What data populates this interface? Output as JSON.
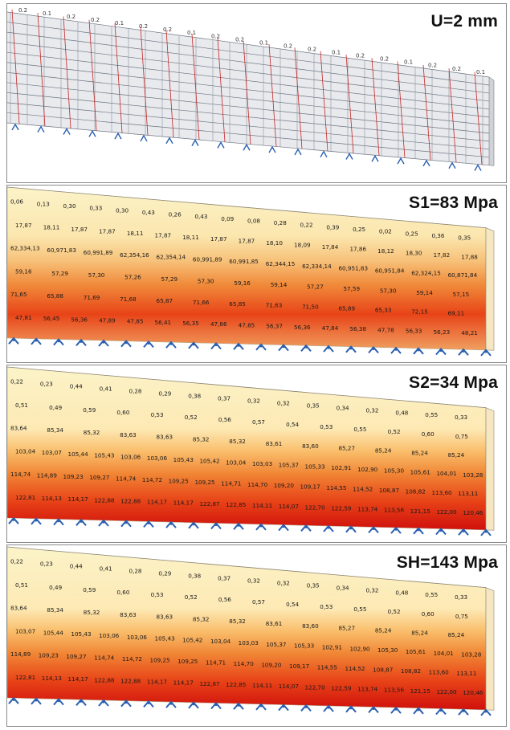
{
  "panels": [
    {
      "id": "p1",
      "label": "U=2 mm",
      "kind": "mesh",
      "sample_labels": [
        "0.2",
        "0.1",
        "0.2",
        "0.2",
        "0.1",
        "0.2"
      ]
    },
    {
      "id": "p2",
      "label": "S1=83 Mpa",
      "kind": "stress",
      "row_values": [
        [
          "0,06",
          "0,13",
          "0,30",
          "0,33",
          "0,30",
          "0,43",
          "0,26",
          "0,43",
          "0,09",
          "0,08",
          "0,28",
          "0,22",
          "0,39",
          "0,25",
          "0,02",
          "0,25",
          "0,36",
          "0,35"
        ],
        [
          "17,87",
          "18,11",
          "17,87",
          "17,87",
          "18,11",
          "17,87",
          "18,11",
          "17,87",
          "17,87",
          "18,10",
          "18,09",
          "17,84",
          "17,86",
          "18,12",
          "18,30",
          "17,82",
          "17,88"
        ],
        [
          "62,334,13",
          "60,971,83",
          "60,991,89",
          "62,354,16",
          "62,354,14",
          "60,991,89",
          "60,991,85",
          "62,344,15",
          "62,334,14",
          "60,951,83",
          "60,951,84",
          "62,324,15",
          "60,871,84"
        ],
        [
          "59,16",
          "57,29",
          "57,30",
          "57,26",
          "57,29",
          "57,30",
          "59,16",
          "59,14",
          "57,27",
          "57,59",
          "57,30",
          "59,14",
          "57,15"
        ],
        [
          "71,65",
          "65,88",
          "71,69",
          "71,68",
          "65,87",
          "71,66",
          "65,85",
          "71,63",
          "71,50",
          "65,89",
          "65,33",
          "72,15",
          "69,11"
        ],
        [
          "47,81",
          "56,45",
          "56,36",
          "47,89",
          "47,85",
          "56,41",
          "56,35",
          "47,86",
          "47,85",
          "56,37",
          "56,36",
          "47,84",
          "56,38",
          "47,78",
          "56,33",
          "56,23",
          "48,21"
        ]
      ]
    },
    {
      "id": "p3",
      "label": "S2=34 Mpa",
      "kind": "stress",
      "row_values": [
        [
          "0,22",
          "0,23",
          "0,44",
          "0,41",
          "0,28",
          "0,29",
          "0,38",
          "0,37",
          "0,32",
          "0,32",
          "0,35",
          "0,34",
          "0,32",
          "0,48",
          "0,55",
          "0,33"
        ],
        [
          "0,51",
          "0,49",
          "0,59",
          "0,60",
          "0,53",
          "0,52",
          "0,56",
          "0,57",
          "0,54",
          "0,53",
          "0,55",
          "0,52",
          "0,60",
          "0,75"
        ],
        [
          "83,64",
          "85,34",
          "85,32",
          "83,63",
          "83,63",
          "85,32",
          "85,32",
          "83,61",
          "83,60",
          "85,27",
          "85,24",
          "85,24",
          "85,24"
        ],
        [
          "103,04",
          "103,07",
          "105,44",
          "105,43",
          "103,06",
          "103,06",
          "105,43",
          "105,42",
          "103,04",
          "103,03",
          "105,37",
          "105,33",
          "102,91",
          "102,90",
          "105,30",
          "105,61",
          "104,01",
          "103,28"
        ],
        [
          "114,74",
          "114,89",
          "109,23",
          "109,27",
          "114,74",
          "114,72",
          "109,25",
          "109,25",
          "114,71",
          "114,70",
          "109,20",
          "109,17",
          "114,55",
          "114,52",
          "108,87",
          "108,82",
          "113,60",
          "113,11"
        ],
        [
          "122,81",
          "114,13",
          "114,17",
          "122,88",
          "122,88",
          "114,17",
          "114,17",
          "122,87",
          "122,85",
          "114,11",
          "114,07",
          "122,70",
          "122,59",
          "113,74",
          "113,56",
          "121,15",
          "122,00",
          "120,46"
        ]
      ]
    },
    {
      "id": "p4",
      "label": "SH=143 Mpa",
      "kind": "stress",
      "row_values": [
        [
          "0,22",
          "0,23",
          "0,44",
          "0,41",
          "0,28",
          "0,29",
          "0,38",
          "0,37",
          "0,32",
          "0,32",
          "0,35",
          "0,34",
          "0,32",
          "0,48",
          "0,55",
          "0,33"
        ],
        [
          "0,51",
          "0,49",
          "0,59",
          "0,60",
          "0,53",
          "0,52",
          "0,56",
          "0,57",
          "0,54",
          "0,53",
          "0,55",
          "0,52",
          "0,60",
          "0,75"
        ],
        [
          "83,64",
          "85,34",
          "85,32",
          "83,63",
          "83,63",
          "85,32",
          "85,32",
          "83,61",
          "83,60",
          "85,27",
          "85,24",
          "85,24",
          "85,24"
        ],
        [
          "103,07",
          "105,44",
          "105,43",
          "103,06",
          "103,06",
          "105,43",
          "105,42",
          "103,04",
          "103,03",
          "105,37",
          "105,33",
          "102,91",
          "102,90",
          "105,30",
          "105,61",
          "104,01",
          "103,28"
        ],
        [
          "114,89",
          "109,23",
          "109,27",
          "114,74",
          "114,72",
          "109,25",
          "109,25",
          "114,71",
          "114,70",
          "109,20",
          "109,17",
          "114,55",
          "114,52",
          "108,87",
          "108,82",
          "113,60",
          "113,11"
        ],
        [
          "122,81",
          "114,13",
          "114,17",
          "122,88",
          "122,88",
          "114,17",
          "114,17",
          "122,87",
          "122,85",
          "114,11",
          "114,07",
          "122,70",
          "122,59",
          "113,74",
          "113,56",
          "121,15",
          "122,00",
          "120,46"
        ]
      ]
    }
  ],
  "colors": {
    "low": "#fbf3c8",
    "mid": "#f7b25c",
    "high": "#e84418",
    "peak": "#d0100c",
    "mesh": "#3a3a3a",
    "support": "#2a5fb0"
  }
}
